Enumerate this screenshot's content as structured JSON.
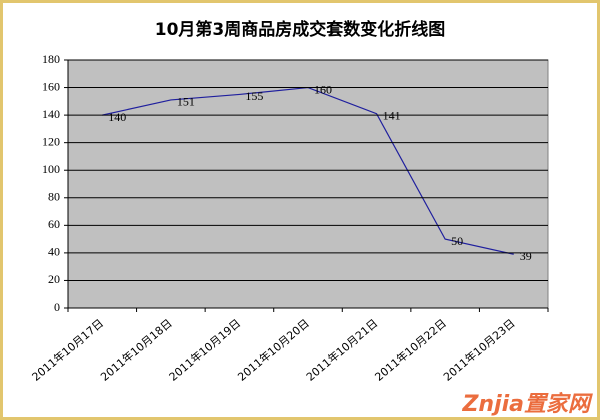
{
  "chart_data": {
    "type": "line",
    "title": "10月第3周商品房成交套数变化折线图",
    "categories": [
      "2011年10月17日",
      "2011年10月18日",
      "2011年10月19日",
      "2011年10月20日",
      "2011年10月21日",
      "2011年10月22日",
      "2011年10月23日"
    ],
    "values": [
      140,
      151,
      155,
      160,
      141,
      50,
      39
    ],
    "color": "#1f1f9e",
    "ylim": [
      0,
      180
    ],
    "yticks": [
      0,
      20,
      40,
      60,
      80,
      100,
      120,
      140,
      160,
      180
    ],
    "grid": true,
    "watermark": "Znjia置家网"
  }
}
